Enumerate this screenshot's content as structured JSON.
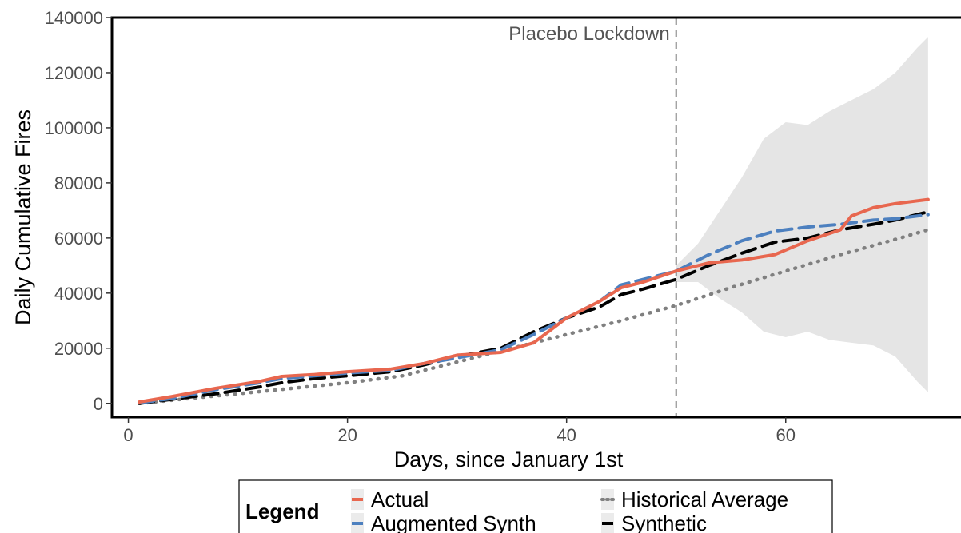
{
  "chart_data": {
    "type": "line",
    "xlabel": "Days, since January 1st",
    "ylabel": "Daily Cumulative Fires",
    "xlim": [
      -1.5,
      76
    ],
    "ylim": [
      -5000,
      140000
    ],
    "x_ticks": [
      0,
      20,
      40,
      60
    ],
    "y_ticks": [
      0,
      20000,
      40000,
      60000,
      80000,
      100000,
      120000,
      140000
    ],
    "grid": false,
    "annotation": {
      "text": "Placebo Lockdown",
      "x": 50
    },
    "legend": {
      "title": "Legend",
      "placement": "bottom",
      "entries": [
        "Actual",
        "Augmented Synth",
        "Historical Average",
        "Synthetic"
      ]
    },
    "band": {
      "x": [
        50,
        52,
        54,
        56,
        58,
        60,
        62,
        64,
        66,
        68,
        70,
        72,
        73
      ],
      "upper": [
        50000,
        58000,
        70000,
        82000,
        96000,
        102000,
        101000,
        106000,
        110000,
        114000,
        120000,
        129000,
        133000
      ],
      "lower": [
        44000,
        44000,
        38000,
        33000,
        26000,
        24000,
        26000,
        23000,
        22000,
        21000,
        17000,
        8000,
        4000
      ]
    },
    "series": [
      {
        "name": "Actual",
        "color": "#e8674f",
        "dash": "solid",
        "x": [
          1,
          4,
          8,
          12,
          14,
          17,
          20,
          24,
          27,
          30,
          34,
          37,
          40,
          43,
          45,
          47,
          50,
          53,
          56,
          59,
          62,
          65,
          66,
          68,
          70,
          73
        ],
        "y": [
          500,
          2500,
          5500,
          8000,
          9800,
          10500,
          11500,
          12500,
          14500,
          17500,
          18500,
          22000,
          31000,
          37000,
          42000,
          44000,
          48000,
          51000,
          52000,
          54000,
          59000,
          63000,
          68000,
          71000,
          72500,
          74000
        ]
      },
      {
        "name": "Augmented Synth",
        "color": "#4d80bf",
        "dash": "dashed",
        "x": [
          1,
          4,
          8,
          12,
          14,
          17,
          20,
          24,
          27,
          30,
          34,
          37,
          40,
          43,
          45,
          47,
          50,
          53,
          56,
          59,
          62,
          65,
          68,
          70,
          73
        ],
        "y": [
          200,
          1800,
          5000,
          7500,
          9000,
          10000,
          11000,
          12000,
          14500,
          16500,
          19500,
          25000,
          31000,
          37000,
          43000,
          45000,
          48000,
          54000,
          59000,
          62500,
          64000,
          65000,
          66500,
          67000,
          68500
        ]
      },
      {
        "name": "Historical Average",
        "color": "#808080",
        "dash": "dotted",
        "x": [
          1,
          10,
          20,
          25,
          30,
          35,
          40,
          45,
          50,
          55,
          60,
          65,
          70,
          73
        ],
        "y": [
          0,
          3500,
          7500,
          10000,
          15000,
          20000,
          25000,
          30000,
          35500,
          42000,
          48000,
          54000,
          59500,
          63000
        ]
      },
      {
        "name": "Synthetic",
        "color": "#000000",
        "dash": "dashed",
        "x": [
          1,
          4,
          8,
          12,
          14,
          17,
          20,
          24,
          27,
          30,
          34,
          37,
          40,
          43,
          45,
          47,
          50,
          53,
          56,
          59,
          62,
          65,
          68,
          70,
          73
        ],
        "y": [
          0,
          1500,
          3500,
          6000,
          7500,
          9000,
          10000,
          11500,
          14000,
          17000,
          20000,
          26000,
          31000,
          35000,
          39500,
          41500,
          45000,
          50000,
          54500,
          58500,
          60000,
          63000,
          65000,
          66500,
          69500
        ]
      }
    ]
  }
}
